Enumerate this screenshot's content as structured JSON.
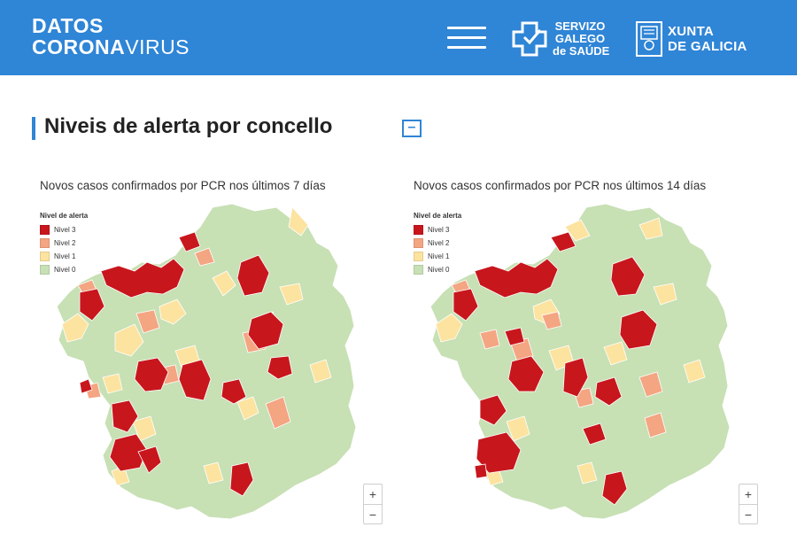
{
  "header": {
    "logo_line1": "DATOS",
    "logo_line2_bold": "CORONA",
    "logo_line2_light": "VIRUS",
    "sergas_line1": "SERVIZO",
    "sergas_line2": "GALEGO",
    "sergas_line3": "de SAÚDE",
    "xunta_line1": "XUNTA",
    "xunta_line2": "DE GALICIA",
    "menu_icon": "hamburger-menu-icon"
  },
  "section": {
    "title": "Niveis de alerta por concello",
    "collapse_label": "–"
  },
  "colors": {
    "header_bg": "#2f85d6",
    "nivel3": "#c8161d",
    "nivel2": "#f4a582",
    "nivel1": "#fde3a0",
    "nivel0": "#c7e0b4"
  },
  "legend": {
    "title": "Nivel de alerta",
    "items": [
      {
        "label": "Nivel 3",
        "color": "#c8161d"
      },
      {
        "label": "Nivel 2",
        "color": "#f4a582"
      },
      {
        "label": "Nivel 1",
        "color": "#fde3a0"
      },
      {
        "label": "Nivel 0",
        "color": "#c7e0b4"
      }
    ]
  },
  "maps": [
    {
      "title": "Novos casos confirmados por PCR nos últimos 7 días",
      "zoom_in": "+",
      "zoom_out": "−"
    },
    {
      "title": "Novos casos confirmados por PCR nos últimos 14 días",
      "zoom_in": "+",
      "zoom_out": "−"
    }
  ]
}
